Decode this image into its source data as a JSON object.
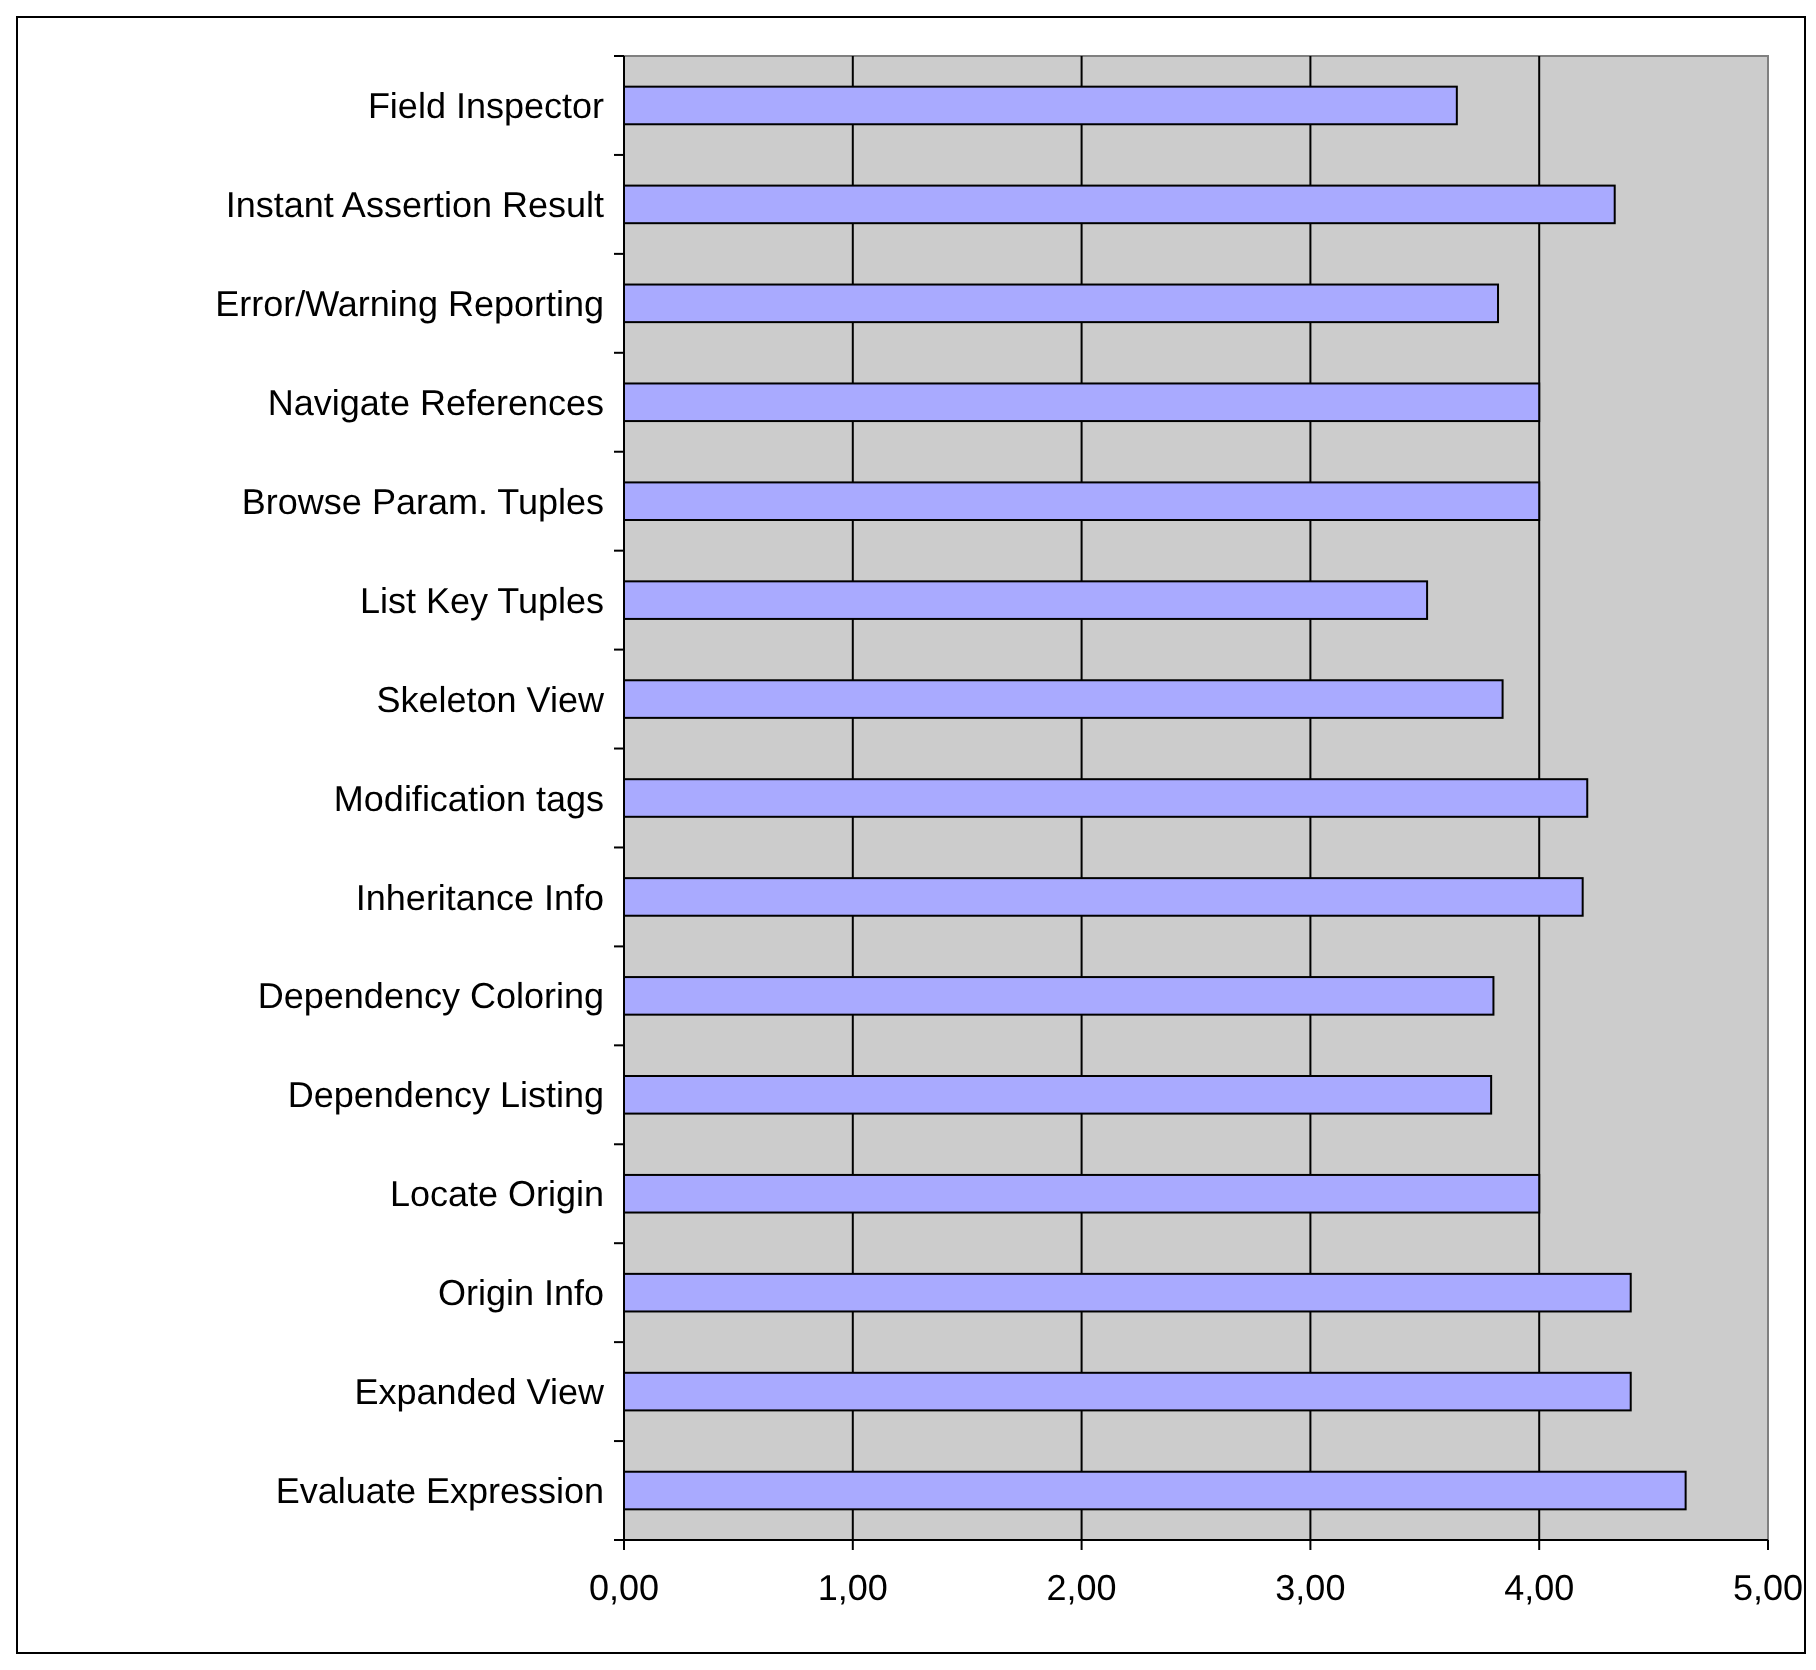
{
  "chart_data": {
    "type": "bar",
    "orientation": "horizontal",
    "categories": [
      "Field Inspector",
      "Instant Assertion Result",
      "Error/Warning Reporting",
      "Navigate References",
      "Browse Param. Tuples",
      "List Key Tuples",
      "Skeleton View",
      "Modification tags",
      "Inheritance Info",
      "Dependency Coloring",
      "Dependency Listing",
      "Locate Origin",
      "Origin Info",
      "Expanded View",
      "Evaluate Expression"
    ],
    "values": [
      3.64,
      4.33,
      3.82,
      4.0,
      4.0,
      3.51,
      3.84,
      4.21,
      4.19,
      3.8,
      3.79,
      4.0,
      4.4,
      4.4,
      4.64
    ],
    "color": "#a9aaff",
    "xlim": [
      0,
      5
    ],
    "xticks": [
      {
        "value": 0,
        "label": "0,00"
      },
      {
        "value": 1,
        "label": "1,00"
      },
      {
        "value": 2,
        "label": "2,00"
      },
      {
        "value": 3,
        "label": "3,00"
      },
      {
        "value": 4,
        "label": "4,00"
      },
      {
        "value": 5,
        "label": "5,00"
      }
    ],
    "grid": "x"
  }
}
